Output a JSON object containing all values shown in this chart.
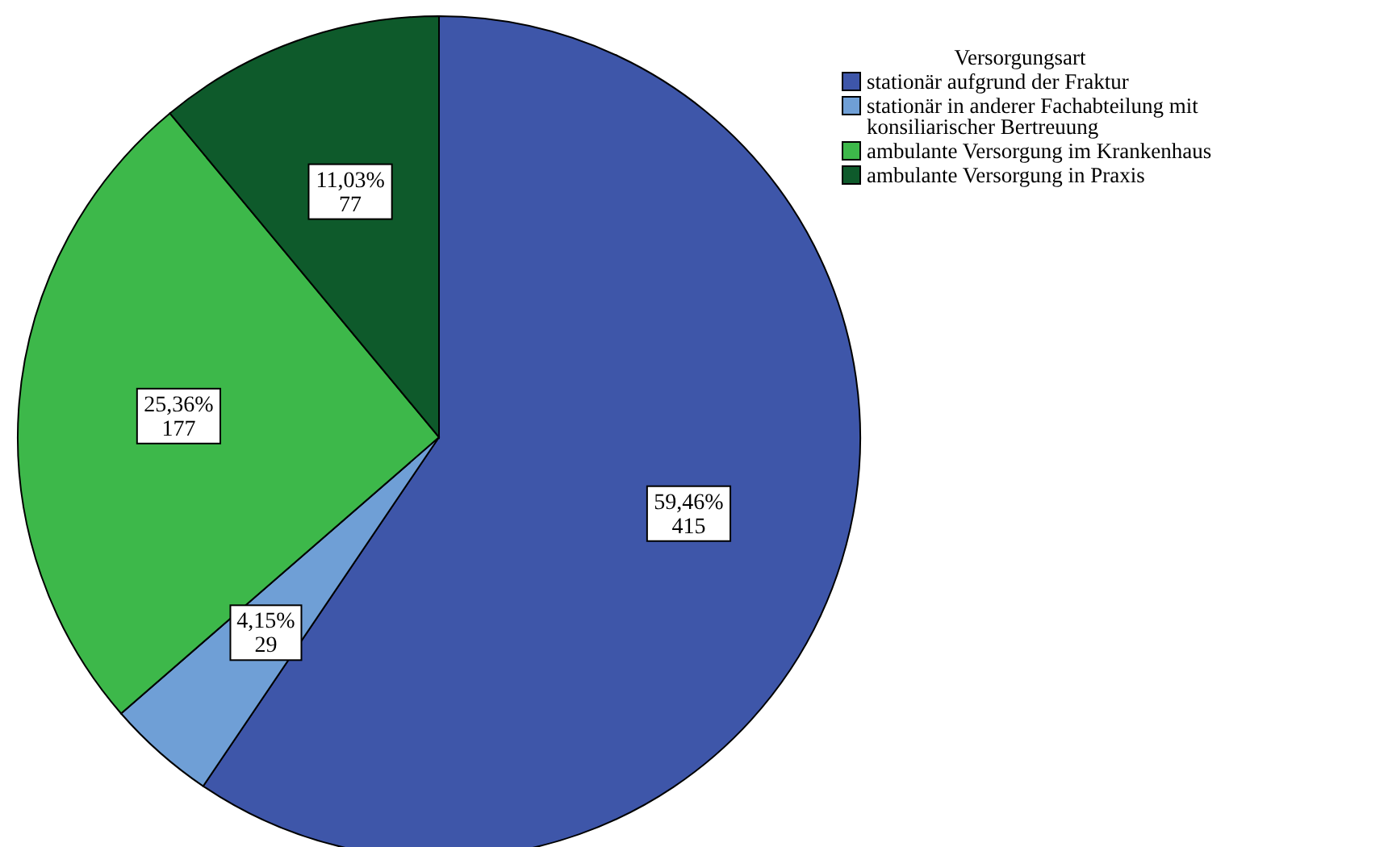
{
  "chart_data": {
    "type": "pie",
    "legend_title": "Versorgungsart",
    "legend": "top right",
    "categories": [
      "stationär aufgrund der Fraktur",
      "stationär in anderer Fachabteilung mit konsiliarischer Bertreuung",
      "ambulante Versorgung im Krankenhaus",
      "ambulante Versorgung in Praxis"
    ],
    "values": [
      415,
      29,
      177,
      77
    ],
    "colors": [
      "#3e56a9",
      "#6f9fd6",
      "#3db84a",
      "#0e5a2b"
    ],
    "value_labels": [
      "59,46%\n415",
      "4,15%\n29",
      "25,36%\n177",
      "11,03%\n77"
    ]
  }
}
